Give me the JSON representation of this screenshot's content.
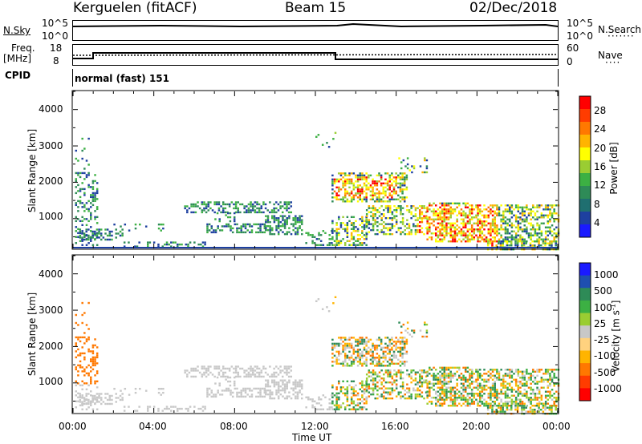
{
  "header": {
    "station": "Kerguelen (fitACF)",
    "beam": "Beam 15",
    "date": "02/Dec/2018"
  },
  "status": {
    "nsky_label": "N.Sky",
    "nsky_ticks": [
      "10^5",
      "10^0"
    ],
    "nsearch_label": "N.Search",
    "nsearch_ticks": [
      "10^5",
      "10^0"
    ],
    "freq_label_top": "Freq.",
    "freq_label_units": "[MHz]",
    "freq_ticks": [
      "18",
      "8"
    ],
    "nave_label": "Nave",
    "nave_ticks": [
      "60",
      "0"
    ],
    "cpid_label": "CPID",
    "cpid_value": "normal (fast) 151"
  },
  "chart_data": [
    {
      "type": "heatmap",
      "name": "power",
      "ylabel": "Slant Range [km]",
      "yticks": [
        "1000",
        "2000",
        "3000",
        "4000"
      ],
      "ylim": [
        180,
        4500
      ],
      "x_ticks": [
        "00:00",
        "04:00",
        "08:00",
        "12:00",
        "16:00",
        "20:00",
        "00:00"
      ],
      "colorbar_label": "Power [dB]",
      "colorbar_ticks": [
        "28",
        "24",
        "20",
        "16",
        "12",
        "8",
        "4"
      ],
      "colorbar_colors": [
        "#ff0000",
        "#ff3c00",
        "#ff7800",
        "#ffb400",
        "#ffff00",
        "#9acd32",
        "#3cb043",
        "#2e8b57",
        "#1f6f70",
        "#1e40a0",
        "#1a1aff"
      ]
    },
    {
      "type": "heatmap",
      "name": "velocity",
      "ylabel": "Slant Range [km]",
      "yticks": [
        "1000",
        "2000",
        "3000",
        "4000"
      ],
      "ylim": [
        180,
        4500
      ],
      "x_ticks": [
        "00:00",
        "04:00",
        "08:00",
        "12:00",
        "16:00",
        "20:00",
        "00:00"
      ],
      "xlabel": "Time UT",
      "colorbar_label": "Velocity [m s",
      "colorbar_label_sup": "-1",
      "colorbar_ticks": [
        "1000",
        "500",
        "100",
        "25",
        "-25",
        "-100",
        "-500",
        "-1000"
      ],
      "colorbar_colors": [
        "#1a1aff",
        "#1e4fb0",
        "#2e8b57",
        "#3cb043",
        "#9acd32",
        "#c8c8c8",
        "#ffd27f",
        "#ffb400",
        "#ff7800",
        "#ff3c00",
        "#ff0000"
      ]
    }
  ]
}
